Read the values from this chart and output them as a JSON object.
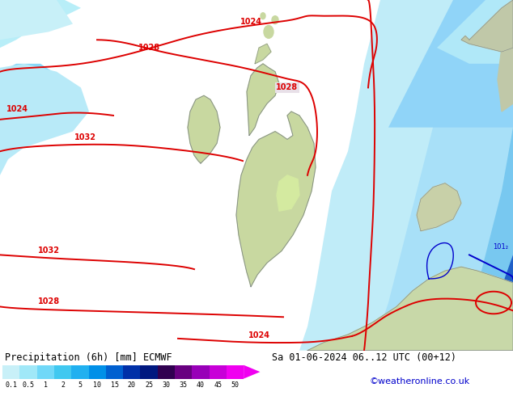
{
  "title_left": "Precipitation (6h) [mm] ECMWF",
  "title_right": "Sa 01-06-2024 06..12 UTC (00+12)",
  "credit": "©weatheronline.co.uk",
  "colorbar_labels": [
    "0.1",
    "0.5",
    "1",
    "2",
    "5",
    "10",
    "15",
    "20",
    "25",
    "30",
    "35",
    "40",
    "45",
    "50"
  ],
  "colorbar_colors": [
    "#c8f0f8",
    "#a0e8f8",
    "#70d8f8",
    "#40c8f0",
    "#20b0f0",
    "#0090e8",
    "#0060d0",
    "#0030a8",
    "#001880",
    "#300050",
    "#680080",
    "#9800b8",
    "#c800d8",
    "#f000f0"
  ],
  "bg_color": "#e8e0e8",
  "ocean_color": "#e8e0e8",
  "land_color_uk": "#c8d8a0",
  "land_color_continent": "#c8d8a8",
  "sea_light": "#c8eef8",
  "precip_left_light": "#b0e8f8",
  "precip_left_medium": "#80d8f8",
  "precip_right_light": "#b0e8f8",
  "precip_right_dark": "#4090d0",
  "contour_red": "#dd0000",
  "contour_blue": "#0000cc",
  "fig_width": 6.34,
  "fig_height": 4.9,
  "dpi": 100
}
